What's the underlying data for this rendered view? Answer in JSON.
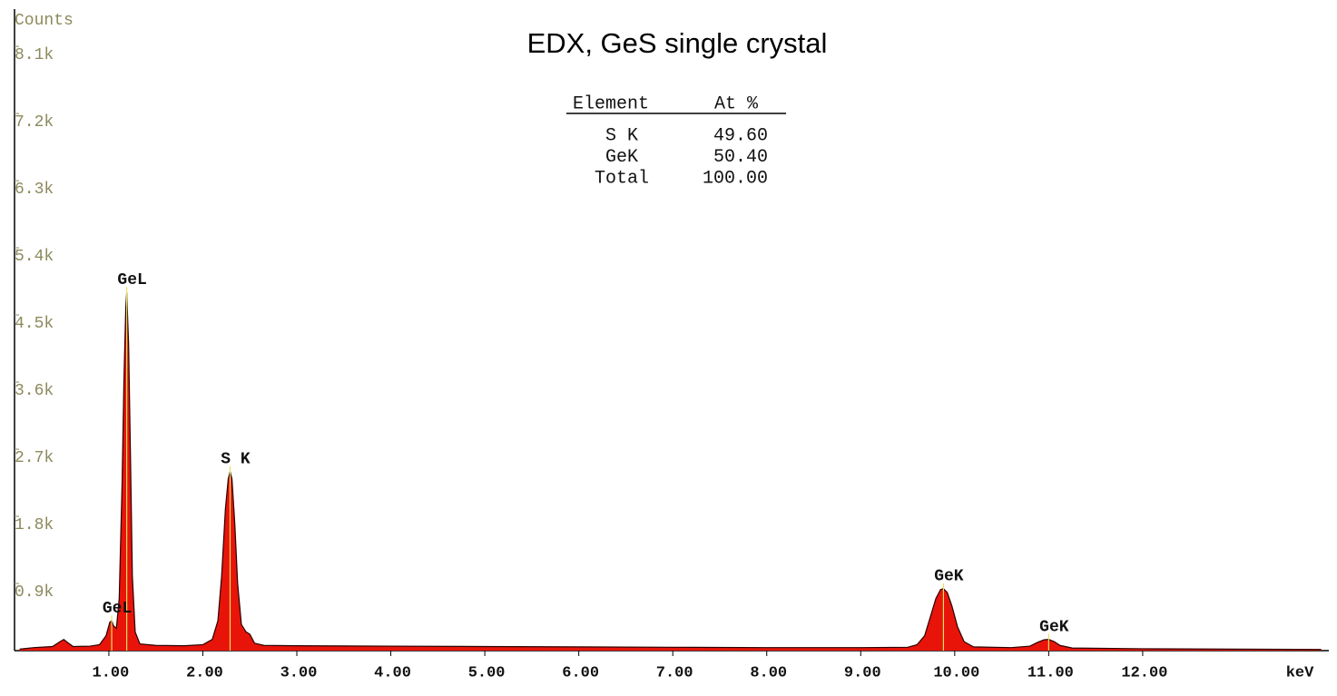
{
  "chart_data": {
    "type": "area",
    "title": "EDX, GeS single crystal",
    "ylabel": "Counts",
    "xlabel": "keV",
    "color": "#e8140a",
    "line_color": "#2a0000",
    "xlim": [
      0,
      14
    ],
    "ylim": [
      0,
      8600
    ],
    "xticks": [
      {
        "value": 1,
        "label": "1.00"
      },
      {
        "value": 2,
        "label": "2.00"
      },
      {
        "value": 3,
        "label": "3.00"
      },
      {
        "value": 4,
        "label": "4.00"
      },
      {
        "value": 5,
        "label": "5.00"
      },
      {
        "value": 6,
        "label": "6.00"
      },
      {
        "value": 7,
        "label": "7.00"
      },
      {
        "value": 8,
        "label": "8.00"
      },
      {
        "value": 9,
        "label": "9.00"
      },
      {
        "value": 10,
        "label": "10.00"
      },
      {
        "value": 11,
        "label": "11.00"
      },
      {
        "value": 12,
        "label": "12.00"
      }
    ],
    "yticks": [
      {
        "value": 900,
        "label": "0.9k"
      },
      {
        "value": 1800,
        "label": "1.8k"
      },
      {
        "value": 2700,
        "label": "2.7k"
      },
      {
        "value": 3600,
        "label": "3.6k"
      },
      {
        "value": 4500,
        "label": "4.5k"
      },
      {
        "value": 5400,
        "label": "5.4k"
      },
      {
        "value": 6300,
        "label": "6.3k"
      },
      {
        "value": 7200,
        "label": "7.2k"
      },
      {
        "value": 8100,
        "label": "8.1k"
      }
    ],
    "x": [
      0.05,
      0.2,
      0.4,
      0.48,
      0.52,
      0.56,
      0.62,
      0.8,
      0.9,
      0.97,
      1.01,
      1.03,
      1.05,
      1.08,
      1.11,
      1.14,
      1.16,
      1.18,
      1.19,
      1.21,
      1.23,
      1.25,
      1.28,
      1.33,
      1.5,
      1.8,
      2.0,
      2.1,
      2.16,
      2.2,
      2.24,
      2.27,
      2.29,
      2.31,
      2.34,
      2.37,
      2.41,
      2.46,
      2.5,
      2.55,
      2.65,
      3.0,
      4.0,
      5.0,
      6.0,
      7.0,
      8.0,
      9.0,
      9.5,
      9.6,
      9.68,
      9.74,
      9.8,
      9.85,
      9.88,
      9.92,
      9.97,
      10.03,
      10.1,
      10.2,
      10.6,
      10.8,
      10.88,
      10.95,
      11.0,
      11.06,
      11.12,
      11.25,
      12.0,
      13.0,
      13.9
    ],
    "values": [
      20,
      40,
      55,
      120,
      150,
      110,
      55,
      60,
      80,
      200,
      380,
      400,
      330,
      300,
      700,
      2200,
      3600,
      4600,
      4800,
      4100,
      2600,
      1000,
      250,
      90,
      70,
      65,
      80,
      150,
      400,
      1000,
      1900,
      2300,
      2400,
      2300,
      1700,
      900,
      350,
      250,
      220,
      100,
      70,
      65,
      60,
      55,
      50,
      45,
      40,
      40,
      45,
      80,
      200,
      450,
      700,
      820,
      830,
      780,
      600,
      320,
      120,
      50,
      40,
      60,
      110,
      145,
      150,
      120,
      70,
      35,
      25,
      20,
      15
    ],
    "annotations": [
      {
        "text": "GeL",
        "x": 1.19,
        "y": 4800
      },
      {
        "text": "GeL",
        "x": 1.03,
        "y": 400
      },
      {
        "text": "S K",
        "x": 2.29,
        "y": 2400
      },
      {
        "text": "GeK",
        "x": 9.88,
        "y": 830
      },
      {
        "text": "GeK",
        "x": 11.0,
        "y": 150
      }
    ],
    "table": {
      "headers": [
        "Element",
        "At %"
      ],
      "rows": [
        [
          "S K",
          "49.60"
        ],
        [
          "GeK",
          "50.40"
        ],
        [
          "Total",
          "100.00"
        ]
      ]
    }
  }
}
